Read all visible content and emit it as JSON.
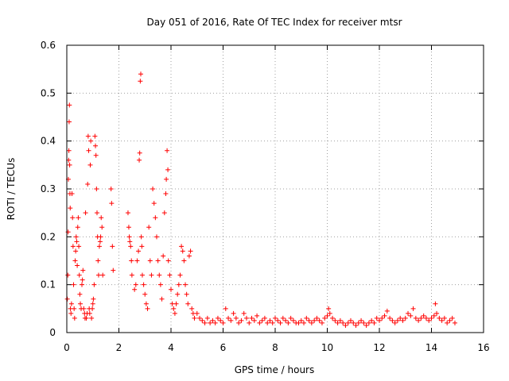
{
  "chart_data": {
    "type": "scatter",
    "title": "Day 051 of 2016, Rate Of TEC Index for receiver mtsr",
    "xlabel": "GPS time / hours",
    "ylabel": "ROTI / TECUs",
    "xlim": [
      0,
      16
    ],
    "ylim": [
      0,
      0.6
    ],
    "xticks": [
      0,
      2,
      4,
      6,
      8,
      10,
      12,
      14,
      16
    ],
    "yticks": [
      0,
      0.1,
      0.2,
      0.3,
      0.4,
      0.5,
      0.6
    ],
    "ytick_labels": [
      "0",
      "0.1",
      "0.2",
      "0.3",
      "0.4",
      "0.5",
      "0.6"
    ],
    "grid": true,
    "marker": "+",
    "series": [
      {
        "name": "ROTI",
        "color": "#ff0000",
        "points": [
          [
            0.02,
            0.07
          ],
          [
            0.04,
            0.12
          ],
          [
            0.05,
            0.21
          ],
          [
            0.06,
            0.32
          ],
          [
            0.07,
            0.36
          ],
          [
            0.08,
            0.38
          ],
          [
            0.09,
            0.44
          ],
          [
            0.1,
            0.475
          ],
          [
            0.11,
            0.35
          ],
          [
            0.12,
            0.29
          ],
          [
            0.13,
            0.26
          ],
          [
            0.14,
            0.05
          ],
          [
            0.16,
            0.04
          ],
          [
            0.18,
            0.06
          ],
          [
            0.2,
            0.29
          ],
          [
            0.22,
            0.24
          ],
          [
            0.24,
            0.18
          ],
          [
            0.26,
            0.1
          ],
          [
            0.28,
            0.05
          ],
          [
            0.3,
            0.03
          ],
          [
            0.32,
            0.15
          ],
          [
            0.34,
            0.17
          ],
          [
            0.36,
            0.2
          ],
          [
            0.38,
            0.19
          ],
          [
            0.4,
            0.14
          ],
          [
            0.42,
            0.22
          ],
          [
            0.44,
            0.24
          ],
          [
            0.46,
            0.18
          ],
          [
            0.48,
            0.12
          ],
          [
            0.5,
            0.08
          ],
          [
            0.52,
            0.06
          ],
          [
            0.55,
            0.05
          ],
          [
            0.58,
            0.1
          ],
          [
            0.6,
            0.11
          ],
          [
            0.62,
            0.13
          ],
          [
            0.65,
            0.05
          ],
          [
            0.68,
            0.04
          ],
          [
            0.7,
            0.03
          ],
          [
            0.72,
            0.25
          ],
          [
            0.75,
            0.03
          ],
          [
            0.78,
            0.04
          ],
          [
            0.8,
            0.31
          ],
          [
            0.82,
            0.41
          ],
          [
            0.84,
            0.38
          ],
          [
            0.86,
            0.05
          ],
          [
            0.88,
            0.04
          ],
          [
            0.9,
            0.35
          ],
          [
            0.92,
            0.4
          ],
          [
            0.95,
            0.03
          ],
          [
            0.98,
            0.05
          ],
          [
            1.0,
            0.06
          ],
          [
            1.02,
            0.07
          ],
          [
            1.05,
            0.1
          ],
          [
            1.08,
            0.41
          ],
          [
            1.1,
            0.39
          ],
          [
            1.12,
            0.37
          ],
          [
            1.14,
            0.3
          ],
          [
            1.16,
            0.25
          ],
          [
            1.18,
            0.2
          ],
          [
            1.2,
            0.15
          ],
          [
            1.22,
            0.12
          ],
          [
            1.25,
            0.18
          ],
          [
            1.28,
            0.19
          ],
          [
            1.3,
            0.2
          ],
          [
            1.32,
            0.24
          ],
          [
            1.35,
            0.22
          ],
          [
            1.38,
            0.12
          ],
          [
            1.7,
            0.3
          ],
          [
            1.72,
            0.27
          ],
          [
            1.75,
            0.18
          ],
          [
            1.78,
            0.13
          ],
          [
            2.35,
            0.25
          ],
          [
            2.38,
            0.22
          ],
          [
            2.4,
            0.2
          ],
          [
            2.42,
            0.19
          ],
          [
            2.45,
            0.18
          ],
          [
            2.48,
            0.15
          ],
          [
            2.5,
            0.12
          ],
          [
            2.6,
            0.09
          ],
          [
            2.65,
            0.1
          ],
          [
            2.7,
            0.15
          ],
          [
            2.75,
            0.17
          ],
          [
            2.78,
            0.36
          ],
          [
            2.8,
            0.375
          ],
          [
            2.82,
            0.525
          ],
          [
            2.84,
            0.54
          ],
          [
            2.86,
            0.2
          ],
          [
            2.88,
            0.18
          ],
          [
            2.9,
            0.12
          ],
          [
            2.95,
            0.1
          ],
          [
            3.0,
            0.08
          ],
          [
            3.05,
            0.06
          ],
          [
            3.1,
            0.05
          ],
          [
            3.15,
            0.22
          ],
          [
            3.2,
            0.15
          ],
          [
            3.25,
            0.12
          ],
          [
            3.3,
            0.3
          ],
          [
            3.35,
            0.27
          ],
          [
            3.4,
            0.24
          ],
          [
            3.45,
            0.2
          ],
          [
            3.5,
            0.15
          ],
          [
            3.55,
            0.12
          ],
          [
            3.6,
            0.1
          ],
          [
            3.65,
            0.07
          ],
          [
            3.7,
            0.16
          ],
          [
            3.75,
            0.25
          ],
          [
            3.8,
            0.29
          ],
          [
            3.82,
            0.32
          ],
          [
            3.85,
            0.38
          ],
          [
            3.88,
            0.34
          ],
          [
            3.9,
            0.15
          ],
          [
            3.95,
            0.12
          ],
          [
            4.0,
            0.09
          ],
          [
            4.05,
            0.06
          ],
          [
            4.1,
            0.05
          ],
          [
            4.15,
            0.04
          ],
          [
            4.2,
            0.06
          ],
          [
            4.25,
            0.08
          ],
          [
            4.3,
            0.1
          ],
          [
            4.35,
            0.12
          ],
          [
            4.4,
            0.18
          ],
          [
            4.45,
            0.17
          ],
          [
            4.5,
            0.15
          ],
          [
            4.55,
            0.1
          ],
          [
            4.6,
            0.08
          ],
          [
            4.65,
            0.06
          ],
          [
            4.7,
            0.16
          ],
          [
            4.75,
            0.17
          ],
          [
            4.8,
            0.05
          ],
          [
            4.85,
            0.04
          ],
          [
            4.9,
            0.03
          ],
          [
            5.0,
            0.04
          ],
          [
            5.1,
            0.03
          ],
          [
            5.2,
            0.025
          ],
          [
            5.3,
            0.02
          ],
          [
            5.4,
            0.03
          ],
          [
            5.5,
            0.02
          ],
          [
            5.6,
            0.025
          ],
          [
            5.7,
            0.02
          ],
          [
            5.8,
            0.03
          ],
          [
            5.9,
            0.025
          ],
          [
            6.0,
            0.02
          ],
          [
            6.1,
            0.05
          ],
          [
            6.2,
            0.03
          ],
          [
            6.3,
            0.025
          ],
          [
            6.4,
            0.04
          ],
          [
            6.5,
            0.03
          ],
          [
            6.6,
            0.02
          ],
          [
            6.7,
            0.025
          ],
          [
            6.8,
            0.04
          ],
          [
            6.9,
            0.03
          ],
          [
            7.0,
            0.02
          ],
          [
            7.1,
            0.03
          ],
          [
            7.2,
            0.025
          ],
          [
            7.3,
            0.035
          ],
          [
            7.4,
            0.02
          ],
          [
            7.5,
            0.025
          ],
          [
            7.6,
            0.03
          ],
          [
            7.7,
            0.02
          ],
          [
            7.8,
            0.025
          ],
          [
            7.9,
            0.02
          ],
          [
            8.0,
            0.03
          ],
          [
            8.1,
            0.025
          ],
          [
            8.2,
            0.02
          ],
          [
            8.3,
            0.03
          ],
          [
            8.4,
            0.025
          ],
          [
            8.5,
            0.02
          ],
          [
            8.6,
            0.03
          ],
          [
            8.7,
            0.025
          ],
          [
            8.8,
            0.02
          ],
          [
            8.9,
            0.02
          ],
          [
            9.0,
            0.025
          ],
          [
            9.1,
            0.02
          ],
          [
            9.2,
            0.03
          ],
          [
            9.3,
            0.025
          ],
          [
            9.4,
            0.02
          ],
          [
            9.5,
            0.025
          ],
          [
            9.6,
            0.03
          ],
          [
            9.7,
            0.025
          ],
          [
            9.8,
            0.02
          ],
          [
            9.9,
            0.03
          ],
          [
            10.0,
            0.035
          ],
          [
            10.05,
            0.05
          ],
          [
            10.1,
            0.04
          ],
          [
            10.2,
            0.03
          ],
          [
            10.3,
            0.025
          ],
          [
            10.4,
            0.02
          ],
          [
            10.5,
            0.025
          ],
          [
            10.6,
            0.02
          ],
          [
            10.7,
            0.015
          ],
          [
            10.8,
            0.02
          ],
          [
            10.9,
            0.025
          ],
          [
            11.0,
            0.02
          ],
          [
            11.1,
            0.015
          ],
          [
            11.2,
            0.02
          ],
          [
            11.3,
            0.025
          ],
          [
            11.4,
            0.02
          ],
          [
            11.5,
            0.015
          ],
          [
            11.6,
            0.02
          ],
          [
            11.7,
            0.025
          ],
          [
            11.8,
            0.02
          ],
          [
            11.9,
            0.03
          ],
          [
            12.0,
            0.025
          ],
          [
            12.1,
            0.03
          ],
          [
            12.2,
            0.035
          ],
          [
            12.3,
            0.045
          ],
          [
            12.4,
            0.03
          ],
          [
            12.5,
            0.025
          ],
          [
            12.6,
            0.02
          ],
          [
            12.7,
            0.025
          ],
          [
            12.8,
            0.03
          ],
          [
            12.9,
            0.025
          ],
          [
            13.0,
            0.03
          ],
          [
            13.1,
            0.04
          ],
          [
            13.2,
            0.035
          ],
          [
            13.3,
            0.05
          ],
          [
            13.4,
            0.03
          ],
          [
            13.5,
            0.025
          ],
          [
            13.6,
            0.03
          ],
          [
            13.7,
            0.035
          ],
          [
            13.8,
            0.03
          ],
          [
            13.9,
            0.025
          ],
          [
            14.0,
            0.03
          ],
          [
            14.1,
            0.035
          ],
          [
            14.15,
            0.06
          ],
          [
            14.2,
            0.04
          ],
          [
            14.3,
            0.03
          ],
          [
            14.4,
            0.025
          ],
          [
            14.5,
            0.03
          ],
          [
            14.6,
            0.02
          ],
          [
            14.7,
            0.025
          ],
          [
            14.8,
            0.03
          ],
          [
            14.9,
            0.02
          ]
        ]
      }
    ]
  }
}
